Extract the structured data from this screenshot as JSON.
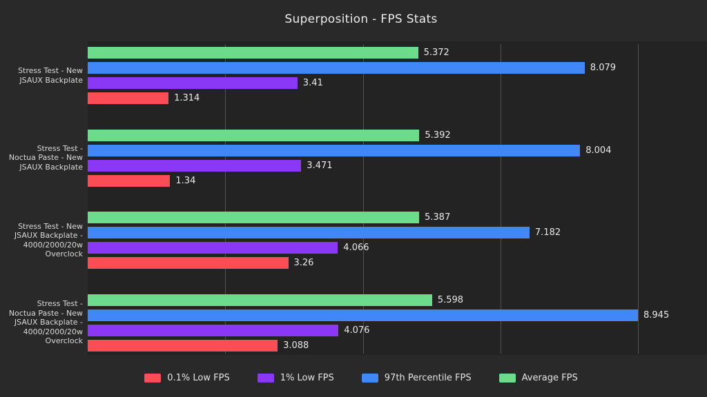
{
  "title": "Superposition - FPS Stats",
  "colors": {
    "page_bg": "#292929",
    "plot_bg": "#232323",
    "grid": "#525252",
    "text": "#e9e9e9",
    "red": "#fb4d58",
    "purple": "#8a38f5",
    "blue": "#4287f8",
    "green": "#6cdb8c"
  },
  "chart_data": {
    "type": "bar",
    "orientation": "horizontal",
    "title": "Superposition - FPS Stats",
    "xlabel": "",
    "ylabel": "",
    "xlim": [
      0,
      8.945
    ],
    "gridlines": [
      2.236,
      4.472,
      6.708,
      8.945
    ],
    "grid": true,
    "value_labels": true,
    "legend_position": "bottom",
    "categories": [
      [
        "Stress Test - New",
        "JSAUX Backplate"
      ],
      [
        "Stress Test -",
        "Noctua Paste - New",
        "JSAUX Backplate"
      ],
      [
        "Stress Test - New",
        "JSAUX Backplate -",
        "4000/2000/20w",
        "Overclock"
      ],
      [
        "Stress Test -",
        "Noctua Paste - New",
        "JSAUX Backplate -",
        "4000/2000/20w",
        "Overclock"
      ]
    ],
    "series": [
      {
        "name": "0.1% Low FPS",
        "color": "#fb4d58",
        "values": [
          1.314,
          1.34,
          3.26,
          3.088
        ]
      },
      {
        "name": "1% Low FPS",
        "color": "#8a38f5",
        "values": [
          3.41,
          3.471,
          4.066,
          4.076
        ]
      },
      {
        "name": "97th Percentile FPS",
        "color": "#4287f8",
        "values": [
          8.079,
          8.004,
          7.182,
          8.945
        ]
      },
      {
        "name": "Average FPS",
        "color": "#6cdb8c",
        "values": [
          5.372,
          5.392,
          5.387,
          5.598
        ]
      }
    ]
  }
}
